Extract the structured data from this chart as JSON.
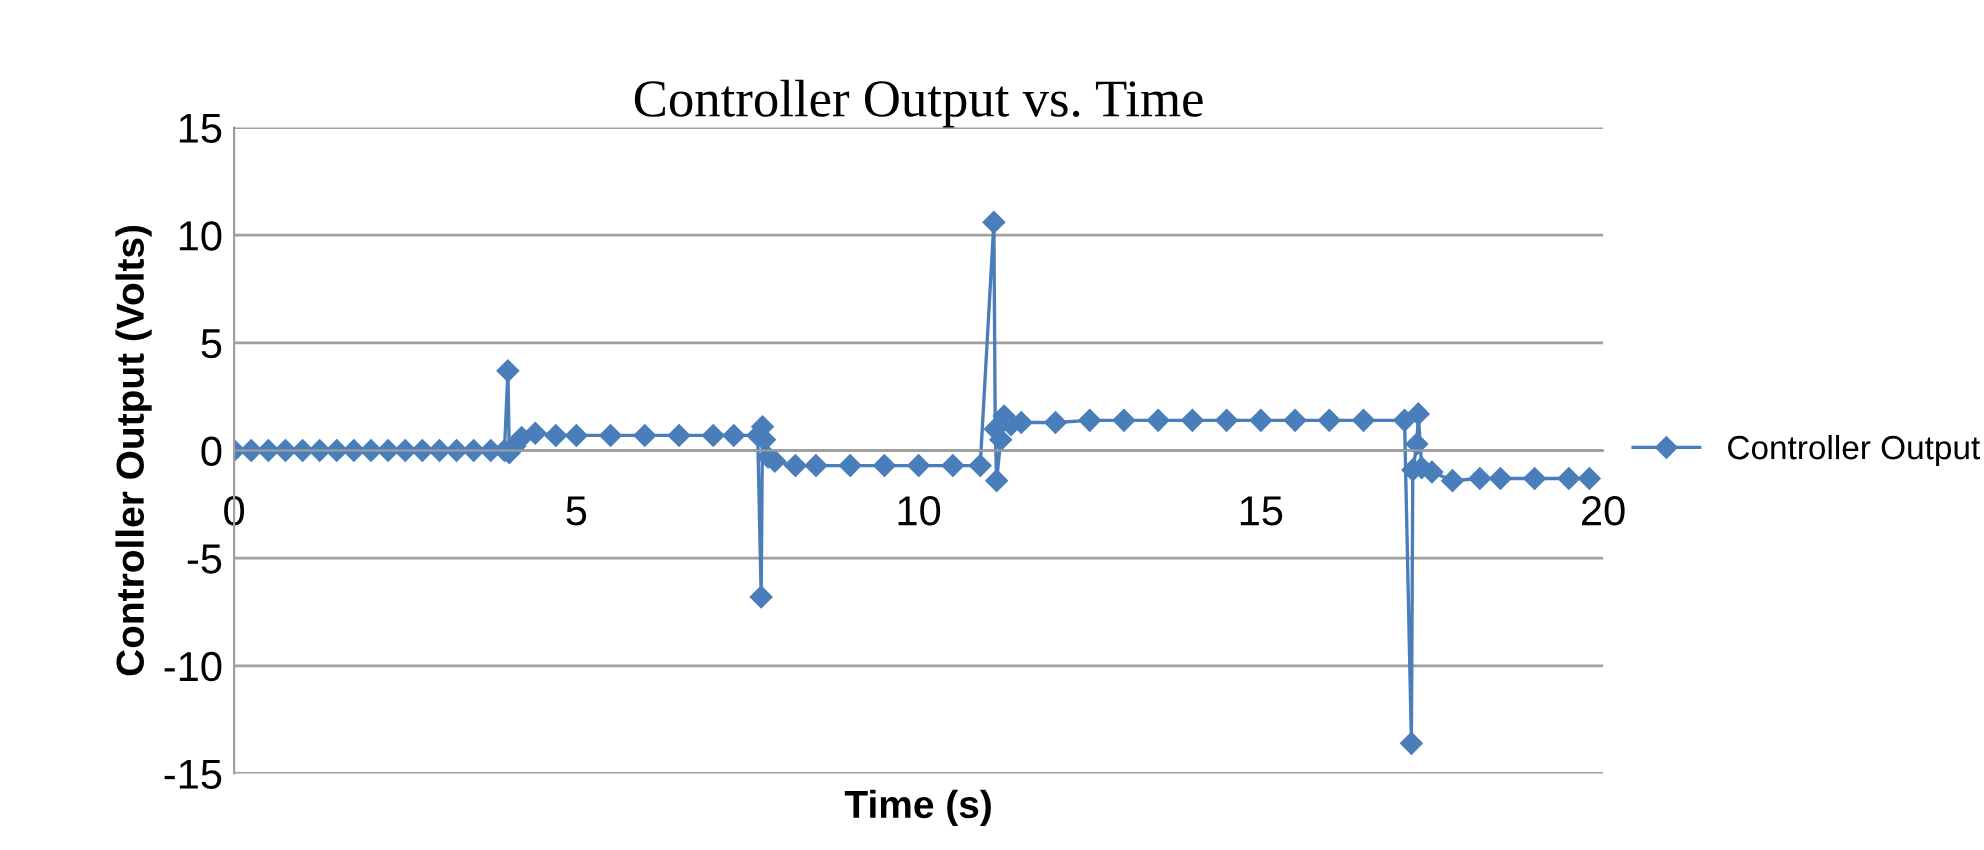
{
  "chart_data": {
    "type": "line",
    "title": "Controller Output vs. Time",
    "xlabel": "Time (s)",
    "ylabel": "Controller Output (Volts)",
    "series": [
      {
        "name": "Controller Output",
        "color": "#4a7ebb",
        "x": [
          0,
          0.25,
          0.5,
          0.75,
          1,
          1.25,
          1.5,
          1.75,
          2,
          2.25,
          2.5,
          2.75,
          3,
          3.25,
          3.5,
          3.75,
          3.95,
          4.0,
          4.02,
          4.1,
          4.2,
          4.4,
          4.7,
          5,
          5.5,
          6,
          6.5,
          7,
          7.3,
          7.65,
          7.7,
          7.72,
          7.75,
          7.8,
          7.9,
          8.2,
          8.5,
          9,
          9.5,
          10,
          10.5,
          10.9,
          11.1,
          11.12,
          11.14,
          11.2,
          11.25,
          11.35,
          11.5,
          12,
          12.5,
          13,
          13.5,
          14,
          14.5,
          15,
          15.5,
          16,
          16.5,
          17.1,
          17.2,
          17.22,
          17.28,
          17.3,
          17.35,
          17.5,
          17.8,
          18.2,
          18.5,
          19,
          19.5,
          19.8
        ],
        "values": [
          0,
          0,
          0,
          0,
          0,
          0,
          0,
          0,
          0,
          0,
          0,
          0,
          0,
          0,
          0,
          0,
          0,
          3.7,
          -0.1,
          0.2,
          0.6,
          0.8,
          0.7,
          0.7,
          0.7,
          0.7,
          0.7,
          0.7,
          0.7,
          0.7,
          -6.8,
          1.1,
          0.5,
          -0.3,
          -0.5,
          -0.7,
          -0.7,
          -0.7,
          -0.7,
          -0.7,
          -0.7,
          -0.7,
          10.6,
          1.0,
          -1.4,
          0.5,
          1.6,
          1.2,
          1.3,
          1.3,
          1.4,
          1.4,
          1.4,
          1.4,
          1.4,
          1.4,
          1.4,
          1.4,
          1.4,
          1.4,
          -13.6,
          -0.9,
          0.3,
          1.7,
          -0.8,
          -1.0,
          -1.4,
          -1.3,
          -1.3,
          -1.3,
          -1.3,
          -1.3
        ]
      }
    ],
    "xlim": [
      0,
      20
    ],
    "xticks": [
      0,
      5,
      10,
      15,
      20
    ],
    "ylim": [
      -15,
      15
    ],
    "yticks": [
      -15,
      -10,
      -5,
      0,
      5,
      10,
      15
    ],
    "grid": "y",
    "legend": "right",
    "marker": "diamond",
    "line_style": "solid"
  }
}
